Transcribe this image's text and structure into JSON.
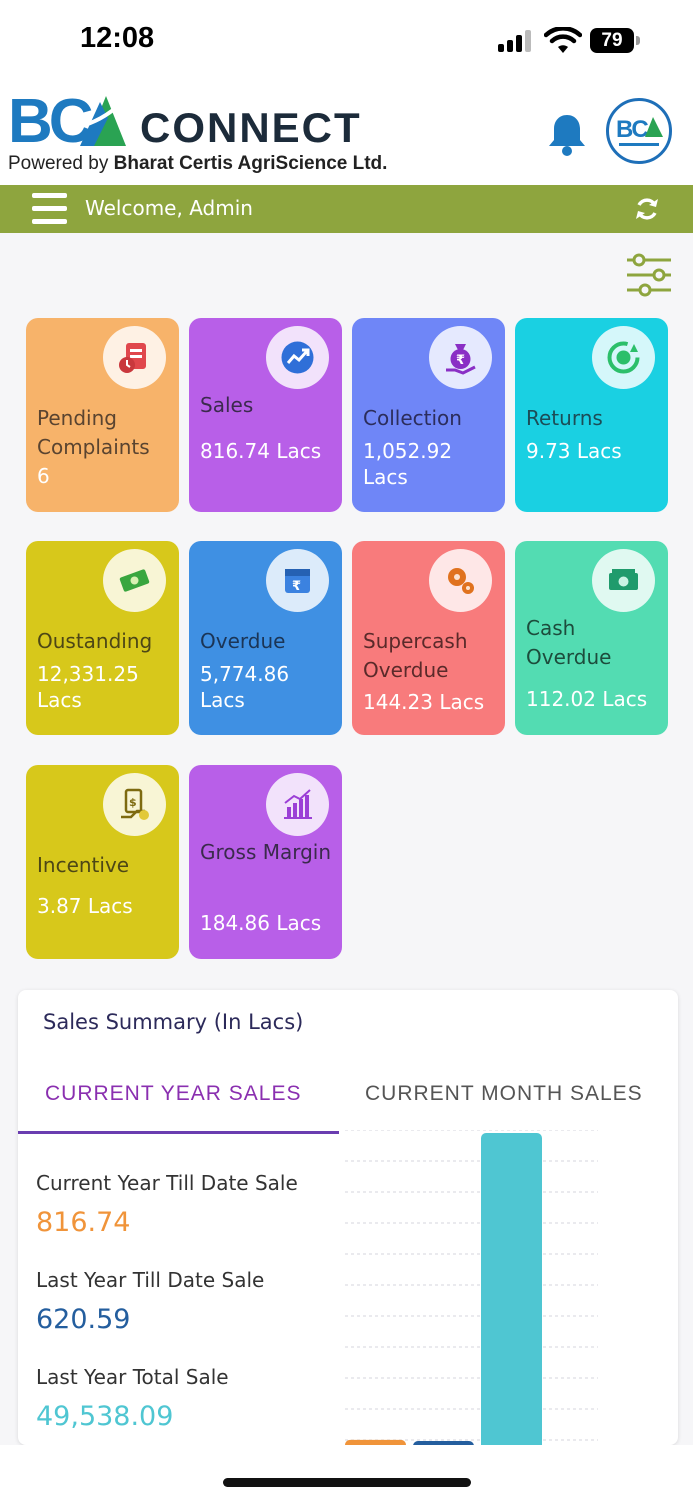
{
  "status_bar": {
    "time": "12:08",
    "battery": "79"
  },
  "header": {
    "logo_letters": "BCA",
    "logo_word": "CONNECT",
    "tagline_prefix": "Powered by ",
    "tagline_company": "Bharat Certis AgriScience Ltd."
  },
  "welcome": {
    "text": "Welcome, Admin"
  },
  "tiles": [
    {
      "title": "Pending Complaints",
      "value": "6",
      "color": "#f7b36a",
      "icon": "complaint-icon"
    },
    {
      "title": "Sales",
      "value": "816.74 Lacs",
      "color": "#b85fe8",
      "icon": "trending-up-icon"
    },
    {
      "title": "Collection",
      "value": "1,052.92 Lacs",
      "color": "#6f86f7",
      "icon": "money-bag-icon"
    },
    {
      "title": "Returns",
      "value": "9.73 Lacs",
      "color": "#1ad0e2",
      "icon": "return-cycle-icon"
    },
    {
      "title": "Oustanding",
      "value": "12,331.25 Lacs",
      "color": "#d7c81b",
      "icon": "cash-icon"
    },
    {
      "title": "Overdue",
      "value": "5,774.86 Lacs",
      "color": "#3f90e3",
      "icon": "calendar-rupee-icon"
    },
    {
      "title": "Supercash Overdue",
      "value": "144.23 Lacs",
      "color": "#f87b7c",
      "icon": "gears-icon"
    },
    {
      "title": "Cash Overdue",
      "value": "112.02 Lacs",
      "color": "#53dcb2",
      "icon": "banknote-icon"
    },
    {
      "title": "Incentive",
      "value": "3.87 Lacs",
      "color": "#d7c81b",
      "icon": "hand-money-icon"
    },
    {
      "title": "Gross Margin",
      "value": "184.86 Lacs",
      "color": "#b85fe8",
      "icon": "bar-growth-icon"
    }
  ],
  "sales_summary": {
    "title": "Sales Summary (In Lacs)",
    "tabs": [
      "CURRENT YEAR SALES",
      "CURRENT MONTH SALES"
    ],
    "active_tab": 0,
    "items": [
      {
        "label": "Current Year Till Date Sale",
        "value": "816.74",
        "color": "#f0943a"
      },
      {
        "label": "Last Year Till Date Sale",
        "value": "620.59",
        "color": "#245e9e"
      },
      {
        "label": "Last Year Total Sale",
        "value": "49,538.09",
        "color": "#4fc6d2"
      }
    ]
  },
  "chart_data": {
    "type": "bar",
    "categories": [
      "Current Year Till Date Sale",
      "Last Year Till Date Sale",
      "Last Year Total Sale"
    ],
    "values": [
      816.74,
      620.59,
      49538.09
    ],
    "colors": [
      "#f0943a",
      "#245e9e",
      "#4fc6d2"
    ],
    "ylim": [
      0,
      49538.09
    ],
    "grid": true,
    "title": "",
    "xlabel": "",
    "ylabel": ""
  }
}
